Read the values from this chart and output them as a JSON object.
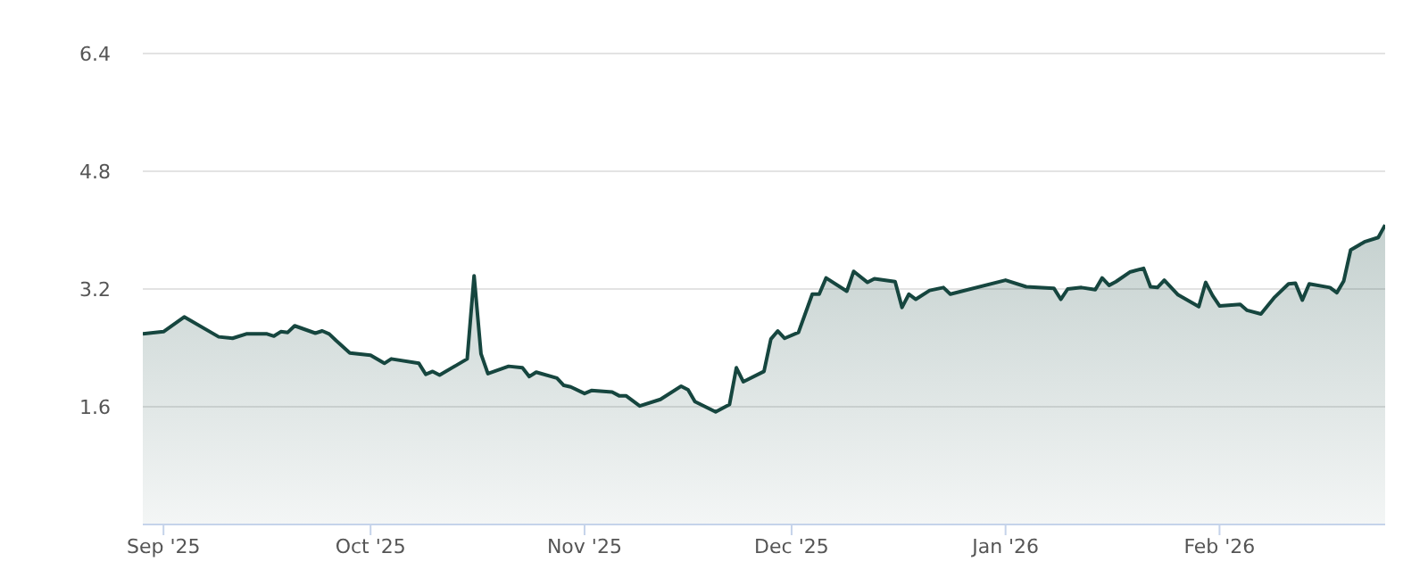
{
  "chart_data": {
    "type": "area",
    "x": [
      "2025-08-29",
      "2025-09-01",
      "2025-09-04",
      "2025-09-09",
      "2025-09-11",
      "2025-09-13",
      "2025-09-16",
      "2025-09-17",
      "2025-09-18",
      "2025-09-19",
      "2025-09-20",
      "2025-09-23",
      "2025-09-24",
      "2025-09-25",
      "2025-09-26",
      "2025-09-28",
      "2025-10-01",
      "2025-10-03",
      "2025-10-04",
      "2025-10-08",
      "2025-10-09",
      "2025-10-10",
      "2025-10-11",
      "2025-10-15",
      "2025-10-16",
      "2025-10-17",
      "2025-10-18",
      "2025-10-21",
      "2025-10-23",
      "2025-10-24",
      "2025-10-25",
      "2025-10-28",
      "2025-10-29",
      "2025-10-30",
      "2025-11-01",
      "2025-11-02",
      "2025-11-05",
      "2025-11-06",
      "2025-11-07",
      "2025-11-09",
      "2025-11-12",
      "2025-11-15",
      "2025-11-16",
      "2025-11-17",
      "2025-11-20",
      "2025-11-22",
      "2025-11-23",
      "2025-11-24",
      "2025-11-27",
      "2025-11-28",
      "2025-11-29",
      "2025-11-30",
      "2025-12-02",
      "2025-12-04",
      "2025-12-05",
      "2025-12-06",
      "2025-12-09",
      "2025-12-10",
      "2025-12-12",
      "2025-12-13",
      "2025-12-16",
      "2025-12-17",
      "2025-12-18",
      "2025-12-19",
      "2025-12-21",
      "2025-12-23",
      "2025-12-24",
      "2026-01-01",
      "2026-01-04",
      "2026-01-08",
      "2026-01-09",
      "2026-01-10",
      "2026-01-12",
      "2026-01-14",
      "2026-01-15",
      "2026-01-16",
      "2026-01-17",
      "2026-01-19",
      "2026-01-21",
      "2026-01-22",
      "2026-01-23",
      "2026-01-24",
      "2026-01-26",
      "2026-01-29",
      "2026-01-30",
      "2026-01-31",
      "2026-02-01",
      "2026-02-04",
      "2026-02-05",
      "2026-02-07",
      "2026-02-09",
      "2026-02-11",
      "2026-02-12",
      "2026-02-13",
      "2026-02-14",
      "2026-02-17",
      "2026-02-18",
      "2026-02-19",
      "2026-02-20",
      "2026-02-22",
      "2026-02-24",
      "2026-02-25"
    ],
    "series": [
      {
        "color": "#16463f",
        "values": [
          2.59,
          2.62,
          2.82,
          2.55,
          2.53,
          2.59,
          2.59,
          2.56,
          2.62,
          2.61,
          2.7,
          2.6,
          2.63,
          2.59,
          2.5,
          2.33,
          2.3,
          2.19,
          2.25,
          2.19,
          2.04,
          2.08,
          2.03,
          2.25,
          3.38,
          2.32,
          2.05,
          2.15,
          2.13,
          2.01,
          2.07,
          1.99,
          1.89,
          1.87,
          1.78,
          1.82,
          1.8,
          1.75,
          1.75,
          1.61,
          1.7,
          1.88,
          1.83,
          1.67,
          1.53,
          1.63,
          2.13,
          1.94,
          2.08,
          2.52,
          2.63,
          2.53,
          2.61,
          3.13,
          3.13,
          3.35,
          3.17,
          3.44,
          3.29,
          3.34,
          3.3,
          2.95,
          3.13,
          3.06,
          3.18,
          3.22,
          3.13,
          3.32,
          3.23,
          3.21,
          3.06,
          3.2,
          3.22,
          3.19,
          3.35,
          3.25,
          3.3,
          3.43,
          3.48,
          3.23,
          3.22,
          3.32,
          3.12,
          2.96,
          3.29,
          3.11,
          2.97,
          2.99,
          2.91,
          2.86,
          3.09,
          3.27,
          3.28,
          3.05,
          3.27,
          3.22,
          3.15,
          3.31,
          3.73,
          3.84,
          3.9,
          4.07
        ]
      }
    ],
    "xlim": [
      "2025-08-29",
      "2026-02-25"
    ],
    "xticks": [
      {
        "value": "2025-09-01",
        "label": "Sep '25"
      },
      {
        "value": "2025-10-01",
        "label": "Oct '25"
      },
      {
        "value": "2025-11-01",
        "label": "Nov '25"
      },
      {
        "value": "2025-12-01",
        "label": "Dec '25"
      },
      {
        "value": "2026-01-01",
        "label": "Jan '26"
      },
      {
        "value": "2026-02-01",
        "label": "Feb '26"
      }
    ],
    "ylim": [
      0,
      6.4
    ],
    "yticks": [
      1.6,
      3.2,
      4.8,
      6.4
    ],
    "grid": "y",
    "marker": "none",
    "line_style": "solid"
  }
}
